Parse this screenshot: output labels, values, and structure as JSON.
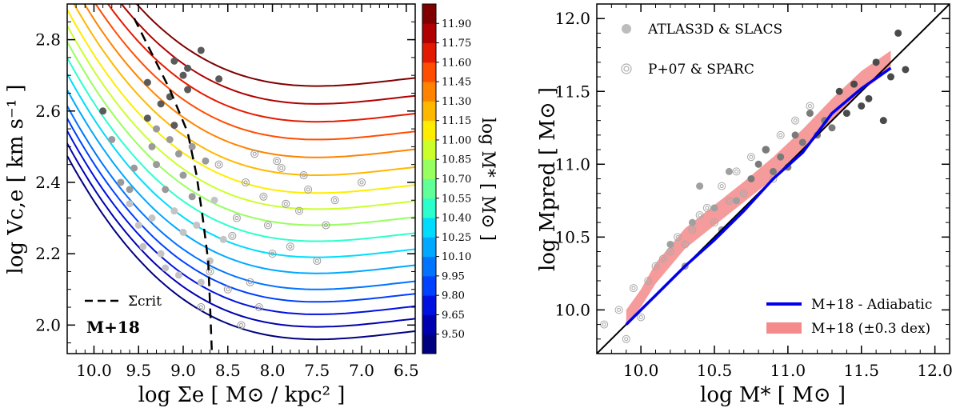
{
  "chart_data": [
    {
      "type": "line",
      "xlabel": "log Σe [ M⊙ / kpc² ]",
      "ylabel": "log Vc,e [ km s⁻¹ ]",
      "xlim": [
        10.3,
        6.4
      ],
      "ylim": [
        1.92,
        2.9
      ],
      "xticks": [
        10.0,
        9.5,
        9.0,
        8.5,
        8.0,
        7.5,
        7.0,
        6.5
      ],
      "xtick_labels": [
        "10.0",
        "9.5",
        "9.0",
        "8.5",
        "8.0",
        "7.5",
        "7.0",
        "6.5"
      ],
      "yticks": [
        2.0,
        2.2,
        2.4,
        2.6,
        2.8
      ],
      "ytick_labels": [
        "2.0",
        "2.2",
        "2.4",
        "2.6",
        "2.8"
      ],
      "annotation": "M+18",
      "legend": [
        {
          "label": "Σcrit",
          "style": "dashed"
        }
      ],
      "sigma_crit_curve": {
        "x": [
          9.55,
          9.35,
          9.15,
          8.95,
          8.85,
          8.78,
          8.72,
          8.7,
          8.68
        ],
        "y": [
          2.86,
          2.76,
          2.66,
          2.54,
          2.42,
          2.3,
          2.18,
          2.06,
          1.93
        ]
      },
      "curves_model": "y = a + 0.032*(x-7.5)^2 + 0.012*(x-7.5)^3, one curve per log M* level",
      "curves_log_mstar": [
        9.5,
        9.65,
        9.8,
        9.95,
        10.1,
        10.25,
        10.4,
        10.55,
        10.7,
        10.85,
        11.0,
        11.15,
        11.3,
        11.45,
        11.6,
        11.75,
        11.9
      ],
      "curves_offset_a": [
        1.96,
        1.995,
        2.03,
        2.065,
        2.1,
        2.145,
        2.19,
        2.235,
        2.28,
        2.325,
        2.37,
        2.42,
        2.47,
        2.52,
        2.57,
        2.62,
        2.67
      ],
      "colorbar": {
        "label": "log M* [ M⊙ ]",
        "levels": [
          "9.50",
          "9.65",
          "9.80",
          "9.95",
          "10.10",
          "10.25",
          "10.40",
          "10.55",
          "10.70",
          "10.85",
          "11.00",
          "11.15",
          "11.30",
          "11.45",
          "11.60",
          "11.75",
          "11.90"
        ],
        "colors": [
          "#000080",
          "#0000b0",
          "#0010e0",
          "#0040ff",
          "#0074ff",
          "#00a8ff",
          "#00dcfe",
          "#2cffcb",
          "#60ff97",
          "#97ff60",
          "#cbff2c",
          "#feed00",
          "#ffb800",
          "#ff8300",
          "#ff4d00",
          "#e41a00",
          "#b00000",
          "#800000"
        ]
      },
      "atlas_points": {
        "label": "ATLAS3D & SLACS",
        "x": [
          8.8,
          9.1,
          9.0,
          8.95,
          9.25,
          8.6,
          9.4,
          9.3,
          9.15,
          9.05,
          8.75,
          9.55,
          9.7,
          9.2,
          8.9,
          9.6,
          9.1,
          9.35,
          8.85,
          9.0,
          8.55,
          9.45,
          9.25,
          8.7,
          9.9,
          9.8,
          9.15,
          8.95,
          9.3,
          9.0,
          8.65,
          9.5,
          9.2,
          9.05,
          8.8,
          9.4,
          9.1,
          8.9,
          9.35,
          9.6
        ],
        "y": [
          2.77,
          2.74,
          2.7,
          2.66,
          2.62,
          2.69,
          2.58,
          2.55,
          2.52,
          2.48,
          2.46,
          2.44,
          2.4,
          2.38,
          2.36,
          2.34,
          2.32,
          2.3,
          2.28,
          2.26,
          2.24,
          2.22,
          2.2,
          2.18,
          2.6,
          2.52,
          2.64,
          2.72,
          2.45,
          2.42,
          2.35,
          2.28,
          2.16,
          2.14,
          2.12,
          2.68,
          2.56,
          2.5,
          2.5,
          2.38
        ]
      },
      "sparc_points": {
        "label": "P+07 & SPARC",
        "x": [
          8.6,
          8.3,
          8.1,
          7.9,
          7.7,
          7.4,
          7.8,
          8.0,
          8.4,
          8.7,
          7.6,
          8.2,
          7.3,
          7.0,
          8.5,
          7.5,
          8.8,
          8.05,
          7.85,
          8.35,
          7.65,
          8.25,
          7.95,
          8.45,
          8.15
        ],
        "y": [
          2.45,
          2.4,
          2.36,
          2.44,
          2.32,
          2.28,
          2.22,
          2.2,
          2.3,
          2.15,
          2.38,
          2.48,
          2.35,
          2.4,
          2.1,
          2.18,
          2.05,
          2.28,
          2.34,
          2.0,
          2.42,
          2.12,
          2.46,
          2.25,
          2.05
        ]
      }
    },
    {
      "type": "scatter",
      "xlabel": "log M* [ M⊙ ]",
      "ylabel": "log Mpred [ M⊙ ]",
      "xlim": [
        9.7,
        12.1
      ],
      "ylim": [
        9.7,
        12.1
      ],
      "xticks": [
        10.0,
        10.5,
        11.0,
        11.5,
        12.0
      ],
      "xtick_labels": [
        "10.0",
        "10.5",
        "11.0",
        "11.5",
        "12.0"
      ],
      "yticks": [
        10.0,
        10.5,
        11.0,
        11.5,
        12.0
      ],
      "ytick_labels": [
        "10.0",
        "10.5",
        "11.0",
        "11.5",
        "12.0"
      ],
      "one_to_one": {
        "x": [
          9.7,
          12.1
        ],
        "y": [
          9.7,
          12.1
        ]
      },
      "series": [
        {
          "name": "M+18 - Adiabatic",
          "color": "#0000ee",
          "x": [
            9.9,
            10.0,
            10.1,
            10.3,
            10.5,
            10.7,
            10.9,
            11.1,
            11.3,
            11.5,
            11.7
          ],
          "y": [
            9.9,
            10.0,
            10.1,
            10.3,
            10.48,
            10.68,
            10.9,
            11.08,
            11.35,
            11.52,
            11.66
          ]
        },
        {
          "name": "M+18 (±0.3 dex)",
          "color": "#f58a8a",
          "x": [
            9.9,
            10.0,
            10.1,
            10.3,
            10.5,
            10.7,
            10.9,
            11.1,
            11.3,
            11.5,
            11.7
          ],
          "y_low": [
            9.9,
            10.02,
            10.18,
            10.42,
            10.58,
            10.74,
            10.9,
            11.08,
            11.3,
            11.5,
            11.65
          ],
          "y_high": [
            10.0,
            10.14,
            10.32,
            10.56,
            10.72,
            10.88,
            11.05,
            11.24,
            11.45,
            11.64,
            11.78
          ]
        }
      ],
      "atlas_points": {
        "label": "ATLAS3D & SLACS",
        "x": [
          10.2,
          10.35,
          10.5,
          10.6,
          10.75,
          10.85,
          10.95,
          11.05,
          11.15,
          11.25,
          11.35,
          11.45,
          11.55,
          11.6,
          11.7,
          11.75,
          11.8,
          10.4,
          10.65,
          10.9,
          11.1,
          11.3,
          11.5,
          10.55,
          10.8,
          11.0,
          11.2,
          11.4,
          11.65,
          10.3
        ],
        "y": [
          10.45,
          10.6,
          10.7,
          10.95,
          10.9,
          11.1,
          11.05,
          11.2,
          11.35,
          11.3,
          11.5,
          11.55,
          11.45,
          11.7,
          11.6,
          11.9,
          11.65,
          10.85,
          10.75,
          10.95,
          11.15,
          11.25,
          11.4,
          10.55,
          11.0,
          10.98,
          11.2,
          11.35,
          11.3,
          10.3
        ]
      },
      "sparc_points": {
        "label": "P+07 & SPARC",
        "x": [
          9.75,
          9.85,
          9.95,
          10.05,
          10.15,
          10.25,
          10.35,
          10.45,
          10.55,
          10.65,
          10.75,
          10.85,
          10.95,
          11.05,
          11.15,
          9.9,
          10.1,
          10.3,
          10.5,
          10.7,
          10.9,
          10.0,
          10.2,
          10.4,
          10.6
        ],
        "y": [
          9.9,
          10.0,
          10.15,
          10.2,
          10.35,
          10.5,
          10.55,
          10.7,
          10.85,
          10.95,
          11.05,
          11.1,
          11.2,
          11.3,
          11.4,
          9.8,
          10.3,
          10.45,
          10.6,
          10.8,
          10.9,
          9.95,
          10.4,
          10.65,
          10.75
        ]
      },
      "legend": [
        {
          "label": "ATLAS3D & SLACS",
          "marker": "gray-dot"
        },
        {
          "label": "P+07 & SPARC",
          "marker": "spiral"
        },
        {
          "label": "M+18 - Adiabatic",
          "marker": "blue-line"
        },
        {
          "label": "M+18 (±0.3 dex)",
          "marker": "pink-band"
        }
      ]
    }
  ]
}
